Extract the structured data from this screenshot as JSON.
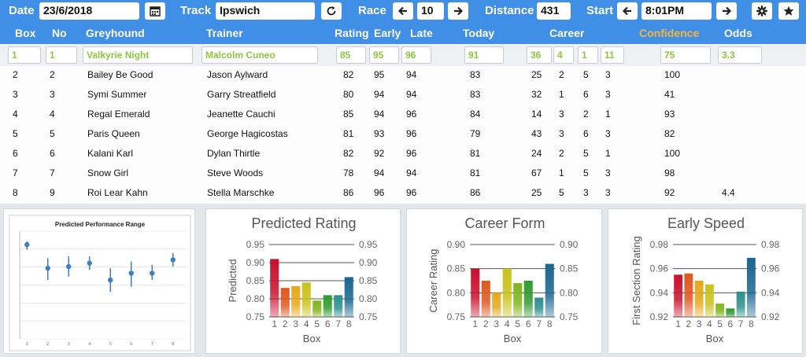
{
  "toolbar": {
    "date_label": "Date",
    "date_value": "23/6/2018",
    "track_label": "Track",
    "track_value": "Ipswich",
    "race_label": "Race",
    "race_value": "10",
    "distance_label": "Distance",
    "distance_value": "431",
    "start_label": "Start",
    "start_value": "8:01PM",
    "icons": [
      "calendar-icon",
      "refresh-icon",
      "arrow-left-icon",
      "arrow-right-icon",
      "gear-icon",
      "star-icon"
    ]
  },
  "table": {
    "headers": {
      "box": "Box",
      "no": "No",
      "greyhound": "Greyhound",
      "trainer": "Trainer",
      "rating": "Rating",
      "early": "Early",
      "late": "Late",
      "today": "Today",
      "career": "Career",
      "confidence": "Confidence",
      "odds": "Odds"
    },
    "selected": {
      "box": "1",
      "no": "1",
      "greyhound": "Valkyrie Night",
      "trainer": "Malcolm Cuneo",
      "rating": "85",
      "early": "95",
      "late": "96",
      "today": "91",
      "career_starts": "36",
      "career_1": "4",
      "career_2": "1",
      "career_3": "11",
      "confidence": "75",
      "odds": "3.3"
    },
    "rows": [
      {
        "box": "2",
        "no": "2",
        "greyhound": "Bailey Be Good",
        "trainer": "Jason Aylward",
        "rating": "82",
        "early": "95",
        "late": "94",
        "today": "83",
        "c0": "25",
        "c1": "2",
        "c2": "5",
        "c3": "3",
        "confidence": "100",
        "odds": ""
      },
      {
        "box": "3",
        "no": "3",
        "greyhound": "Symi Summer",
        "trainer": "Garry Streatfield",
        "rating": "80",
        "early": "94",
        "late": "94",
        "today": "83",
        "c0": "32",
        "c1": "1",
        "c2": "6",
        "c3": "3",
        "confidence": "41",
        "odds": ""
      },
      {
        "box": "4",
        "no": "4",
        "greyhound": "Regal Emerald",
        "trainer": "Jeanette Cauchi",
        "rating": "85",
        "early": "94",
        "late": "96",
        "today": "84",
        "c0": "14",
        "c1": "3",
        "c2": "2",
        "c3": "1",
        "confidence": "93",
        "odds": ""
      },
      {
        "box": "5",
        "no": "5",
        "greyhound": "Paris Queen",
        "trainer": "George Hagicostas",
        "rating": "81",
        "early": "93",
        "late": "96",
        "today": "79",
        "c0": "43",
        "c1": "3",
        "c2": "6",
        "c3": "3",
        "confidence": "82",
        "odds": ""
      },
      {
        "box": "6",
        "no": "6",
        "greyhound": "Kalani Karl",
        "trainer": "Dylan Thirtle",
        "rating": "82",
        "early": "92",
        "late": "96",
        "today": "81",
        "c0": "24",
        "c1": "2",
        "c2": "5",
        "c3": "1",
        "confidence": "100",
        "odds": ""
      },
      {
        "box": "7",
        "no": "7",
        "greyhound": "Snow Girl",
        "trainer": "Steve Woods",
        "rating": "78",
        "early": "94",
        "late": "94",
        "today": "81",
        "c0": "67",
        "c1": "1",
        "c2": "5",
        "c3": "3",
        "confidence": "98",
        "odds": ""
      },
      {
        "box": "8",
        "no": "9",
        "greyhound": "Roi Lear Kahn",
        "trainer": "Stella Marschke",
        "rating": "86",
        "early": "96",
        "late": "96",
        "today": "86",
        "c0": "25",
        "c1": "5",
        "c2": "3",
        "c3": "3",
        "confidence": "92",
        "odds": "4.4"
      }
    ]
  },
  "colors": {
    "header_blue": "#3f8fe6",
    "selected_green": "#8ec63f",
    "confidence_orange": "#f5b63b",
    "bar_colors": [
      "#c8102e",
      "#e0561e",
      "#e6a81c",
      "#c9c21c",
      "#80b51c",
      "#2e9b2e",
      "#2e8f8f",
      "#1a6690"
    ]
  },
  "chart_data": [
    {
      "type": "scatter",
      "title": "Predicted Performance Range",
      "x": [
        1,
        2,
        3,
        4,
        5,
        6,
        7,
        8
      ],
      "tick_labels": [
        "1",
        "2",
        "3",
        "4",
        "5",
        "6",
        "7",
        "8"
      ],
      "y": [
        0.93,
        0.86,
        0.865,
        0.875,
        0.825,
        0.845,
        0.845,
        0.885
      ],
      "err_low": [
        0.915,
        0.825,
        0.835,
        0.855,
        0.79,
        0.805,
        0.825,
        0.865
      ],
      "err_high": [
        0.94,
        0.89,
        0.895,
        0.895,
        0.86,
        0.88,
        0.87,
        0.905
      ],
      "ylim": [
        0.65,
        0.97
      ],
      "grid": true
    },
    {
      "type": "bar",
      "title": "Predicted Rating",
      "categories": [
        "1",
        "2",
        "3",
        "4",
        "5",
        "6",
        "7",
        "8"
      ],
      "values": [
        0.91,
        0.83,
        0.835,
        0.845,
        0.795,
        0.81,
        0.81,
        0.86
      ],
      "xlabel": "Box",
      "ylabel": "Predicted",
      "ylim": [
        0.75,
        0.95
      ],
      "yticks": [
        "0.75",
        "0.80",
        "0.85",
        "0.90",
        "0.95"
      ],
      "grid": true
    },
    {
      "type": "bar",
      "title": "Career Form",
      "categories": [
        "1",
        "2",
        "3",
        "4",
        "5",
        "6",
        "7",
        "8"
      ],
      "values": [
        0.85,
        0.825,
        0.8,
        0.85,
        0.82,
        0.825,
        0.79,
        0.86
      ],
      "xlabel": "Box",
      "ylabel": "Career Rating",
      "ylim": [
        0.75,
        0.9
      ],
      "yticks": [
        "0.75",
        "0.80",
        "0.85",
        "0.90"
      ],
      "grid": true
    },
    {
      "type": "bar",
      "title": "Early Speed",
      "categories": [
        "1",
        "2",
        "3",
        "4",
        "5",
        "6",
        "7",
        "8"
      ],
      "values": [
        0.955,
        0.956,
        0.95,
        0.947,
        0.931,
        0.927,
        0.941,
        0.969
      ],
      "xlabel": "Box",
      "ylabel": "First Section Rating",
      "ylim": [
        0.92,
        0.98
      ],
      "yticks": [
        "0.92",
        "0.94",
        "0.96",
        "0.98"
      ],
      "grid": true
    }
  ]
}
